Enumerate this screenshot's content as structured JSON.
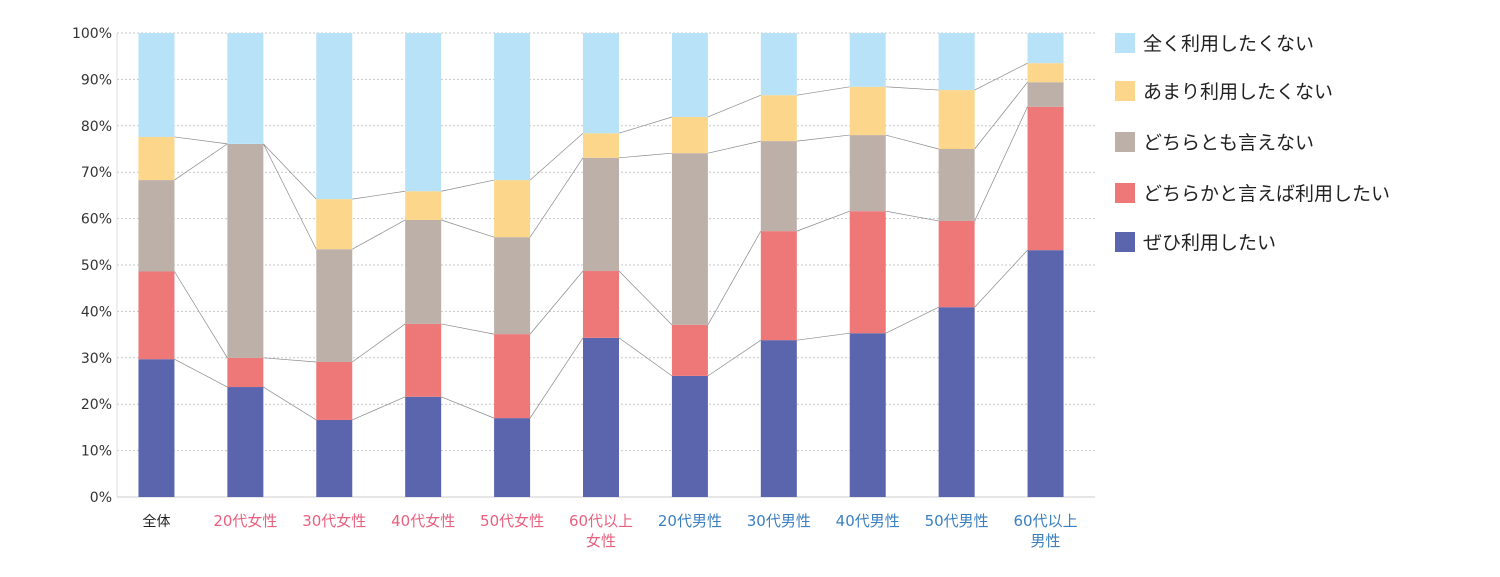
{
  "chart_data": {
    "type": "bar",
    "stacked": true,
    "title": "",
    "xlabel": "",
    "ylabel": "",
    "ylim": [
      0,
      100
    ],
    "y_ticks": [
      "0%",
      "10%",
      "20%",
      "30%",
      "40%",
      "50%",
      "60%",
      "70%",
      "80%",
      "90%",
      "100%"
    ],
    "grid": true,
    "legend_position": "right",
    "categories": [
      {
        "label": [
          "全体"
        ],
        "group": "all"
      },
      {
        "label": [
          "20代女性"
        ],
        "group": "female"
      },
      {
        "label": [
          "30代女性"
        ],
        "group": "female"
      },
      {
        "label": [
          "40代女性"
        ],
        "group": "female"
      },
      {
        "label": [
          "50代女性"
        ],
        "group": "female"
      },
      {
        "label": [
          "60代以上",
          "女性"
        ],
        "group": "female"
      },
      {
        "label": [
          "20代男性"
        ],
        "group": "male"
      },
      {
        "label": [
          "30代男性"
        ],
        "group": "male"
      },
      {
        "label": [
          "40代男性"
        ],
        "group": "male"
      },
      {
        "label": [
          "50代男性"
        ],
        "group": "male"
      },
      {
        "label": [
          "60代以上",
          "男性"
        ],
        "group": "male"
      }
    ],
    "group_colors": {
      "all": "#222222",
      "female": "#e8607e",
      "male": "#3a7fc0"
    },
    "series": [
      {
        "name": "ぜひ利用したい",
        "color": "#5b65ae",
        "values": [
          29.7,
          23.7,
          16.6,
          21.6,
          17.0,
          34.3,
          26.1,
          33.8,
          35.3,
          40.9,
          53.2
        ]
      },
      {
        "name": "どちらかと言えば利用したい",
        "color": "#ee7878",
        "values": [
          18.9,
          6.3,
          12.5,
          15.7,
          18.1,
          14.4,
          11.0,
          23.5,
          26.3,
          18.6,
          30.9
        ]
      },
      {
        "name": "どちらとも言えない",
        "color": "#bcb0a8",
        "values": [
          19.7,
          46.1,
          24.3,
          22.4,
          20.9,
          24.4,
          37.0,
          19.4,
          16.4,
          15.5,
          5.3
        ]
      },
      {
        "name": "あまり利用したくない",
        "color": "#fcd68a",
        "values": [
          9.3,
          0.0,
          10.8,
          6.2,
          12.3,
          5.3,
          7.8,
          9.9,
          10.4,
          12.7,
          4.1
        ]
      },
      {
        "name": "全く利用したくない",
        "color": "#b8e2f8",
        "values": [
          22.4,
          23.9,
          35.8,
          34.1,
          31.7,
          21.6,
          18.1,
          13.4,
          11.6,
          12.3,
          6.5
        ]
      }
    ]
  }
}
